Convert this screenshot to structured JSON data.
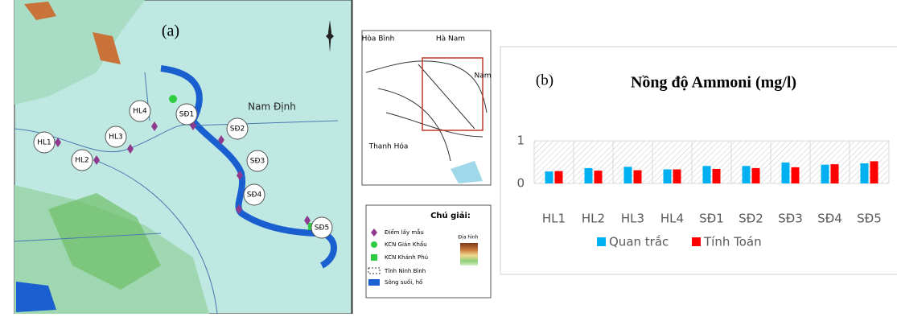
{
  "map": {
    "panel_label": "(a)",
    "region_label": "Nam Định",
    "stations": [
      "HL1",
      "HL2",
      "HL3",
      "HL4",
      "SĐ1",
      "SĐ2",
      "SĐ3",
      "SĐ4",
      "SĐ5"
    ],
    "inset_labels": [
      "Hòa Bình",
      "Hà Nam",
      "Nam",
      "Thanh Hóa"
    ],
    "legend": {
      "title": "Chú giải:",
      "items": [
        "Điểm lấy mẫu",
        "KCN Gián Khẩu",
        "KCN Khánh Phú",
        "Tỉnh Ninh Bình",
        "Sông suối, hồ"
      ],
      "terrain": "Địa hình"
    }
  },
  "chart_data": {
    "type": "bar",
    "panel_label": "(b)",
    "title": "Nồng độ Ammoni (mg/l)",
    "categories": [
      "HL1",
      "HL2",
      "HL3",
      "HL4",
      "SĐ1",
      "SĐ2",
      "SĐ3",
      "SĐ4",
      "SĐ5"
    ],
    "series": [
      {
        "name": "Quan trắc",
        "color": "#00b0f0",
        "values": [
          0.28,
          0.36,
          0.39,
          0.33,
          0.41,
          0.41,
          0.49,
          0.44,
          0.47
        ]
      },
      {
        "name": "Tính Toán",
        "color": "#ff0000",
        "values": [
          0.29,
          0.3,
          0.31,
          0.33,
          0.34,
          0.36,
          0.38,
          0.45,
          0.52
        ]
      }
    ],
    "ylim": [
      0,
      1
    ],
    "yticks": [
      0,
      1
    ],
    "grid": true,
    "legend": "bottom"
  }
}
